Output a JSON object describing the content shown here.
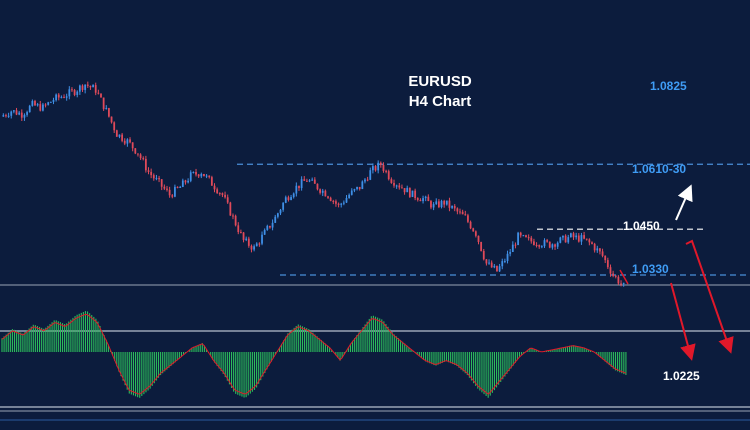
{
  "title": {
    "line1": "EURUSD",
    "line2": "H4 Chart"
  },
  "colors": {
    "background": "#0c1c3d",
    "bull_candle": "#3f8fe6",
    "bear_candle": "#e04a5a",
    "level_dashed": "#4a8fd9",
    "white_level": "#ffffff",
    "label_blue": "#3f9cf5",
    "arrow_up": "#ffffff",
    "arrow_down": "#e0182a",
    "histogram": "#2bbd5b",
    "signal_line": "#e0182a",
    "separator": "#9aa3b5"
  },
  "chart_data": {
    "type": "candlestick",
    "symbol": "EURUSD",
    "timeframe": "H4",
    "price_labels": [
      "1.0825",
      "1.0610-30",
      "1.0450",
      "1.0330",
      "1.0225"
    ],
    "levels": [
      {
        "price": 1.062,
        "label": "1.0610-30",
        "style": "dashed",
        "color": "blue"
      },
      {
        "price": 1.045,
        "label": "1.0450",
        "style": "dashed",
        "color": "white"
      },
      {
        "price": 1.033,
        "label": "1.0330",
        "style": "dashed",
        "color": "blue"
      }
    ],
    "projections": [
      {
        "direction": "up",
        "color": "white",
        "toward": "1.0610-30"
      },
      {
        "direction": "down",
        "color": "red",
        "toward": "1.0225"
      },
      {
        "direction": "down",
        "color": "red",
        "toward": "1.0225"
      }
    ],
    "price_path": [
      1.0745,
      1.076,
      1.0752,
      1.0775,
      1.0768,
      1.079,
      1.08,
      1.0812,
      1.083,
      1.0815,
      1.076,
      1.07,
      1.068,
      1.065,
      1.06,
      1.057,
      1.054,
      1.056,
      1.059,
      1.06,
      1.057,
      1.054,
      1.048,
      1.042,
      1.04,
      1.044,
      1.048,
      1.053,
      1.056,
      1.058,
      1.056,
      1.054,
      1.051,
      1.054,
      1.056,
      1.06,
      1.062,
      1.058,
      1.056,
      1.054,
      1.053,
      1.051,
      1.052,
      1.05,
      1.048,
      1.044,
      1.036,
      1.034,
      1.038,
      1.043,
      1.042,
      1.0415,
      1.041,
      1.042,
      1.043,
      1.0425,
      1.041,
      1.038,
      1.033,
      1.03
    ],
    "oscillator_histogram": [
      0.3,
      0.5,
      0.4,
      0.6,
      0.5,
      0.7,
      0.6,
      0.8,
      0.9,
      0.7,
      0.2,
      -0.4,
      -0.9,
      -1.0,
      -0.8,
      -0.5,
      -0.3,
      -0.1,
      0.1,
      0.2,
      -0.2,
      -0.5,
      -0.9,
      -1.0,
      -0.8,
      -0.4,
      0.0,
      0.4,
      0.6,
      0.5,
      0.3,
      0.1,
      -0.2,
      0.2,
      0.5,
      0.8,
      0.7,
      0.4,
      0.2,
      0.0,
      -0.2,
      -0.3,
      -0.2,
      -0.3,
      -0.5,
      -0.8,
      -1.0,
      -0.7,
      -0.4,
      -0.1,
      0.1,
      0.0,
      0.05,
      0.1,
      0.15,
      0.1,
      0.0,
      -0.2,
      -0.4,
      -0.5
    ]
  }
}
